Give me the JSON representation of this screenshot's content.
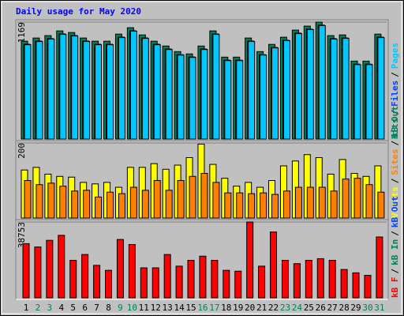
{
  "chart_data": [
    {
      "type": "bar",
      "title": "Daily usage for May 2020",
      "ylim": [
        0,
        1169
      ],
      "yticks": [
        1169
      ],
      "series": [
        {
          "name": "Hits",
          "color": "#00805c",
          "values": [
            978,
            1010,
            1034,
            1081,
            1065,
            1010,
            978,
            978,
            1049,
            1113,
            1041,
            978,
            930,
            874,
            851,
            930,
            1081,
            819,
            819,
            1010,
            874,
            946,
            1018,
            1089,
            1129,
            1169,
            1034,
            1041,
            779,
            779,
            1049
          ]
        },
        {
          "name": "Files",
          "color": "#0040ff",
          "values": [
            948,
            980,
            1004,
            1051,
            1035,
            980,
            948,
            948,
            1019,
            1083,
            1011,
            948,
            900,
            844,
            821,
            900,
            1051,
            789,
            789,
            980,
            844,
            916,
            988,
            1059,
            1099,
            1139,
            1004,
            1011,
            749,
            749,
            1019
          ]
        },
        {
          "name": "Pages",
          "color": "#00c8ff",
          "values": [
            943,
            975,
            999,
            1046,
            1030,
            975,
            943,
            943,
            1014,
            1078,
            1006,
            943,
            895,
            839,
            816,
            895,
            1046,
            784,
            784,
            975,
            839,
            911,
            983,
            1054,
            1094,
            1134,
            999,
            1006,
            744,
            744,
            1014
          ]
        }
      ]
    },
    {
      "type": "bar",
      "ylim": [
        0,
        200
      ],
      "yticks": [
        200
      ],
      "series": [
        {
          "name": "Visits",
          "color": "#ffff00",
          "values": [
            128,
            135,
            117,
            111,
            109,
            95,
            91,
            95,
            82,
            135,
            135,
            145,
            130,
            141,
            161,
            197,
            143,
            106,
            85,
            95,
            82,
            100,
            139,
            152,
            169,
            161,
            117,
            156,
            119,
            111,
            139
          ]
        },
        {
          "name": "Sites",
          "color": "#ff8000",
          "values": [
            100,
            89,
            93,
            85,
            72,
            74,
            56,
            69,
            65,
            82,
            74,
            100,
            74,
            100,
            111,
            119,
            95,
            67,
            67,
            65,
            67,
            63,
            72,
            82,
            82,
            82,
            72,
            104,
            106,
            89,
            69
          ]
        },
        {
          "name": "kB Out",
          "color": "#00805c",
          "values": [
            null,
            null,
            null,
            null,
            null,
            null,
            null,
            null,
            null,
            null,
            null,
            null,
            null,
            null,
            null,
            null,
            null,
            null,
            null,
            null,
            null,
            null,
            null,
            null,
            null,
            null,
            null,
            null,
            null,
            null,
            null
          ]
        }
      ]
    },
    {
      "type": "bar",
      "ylim": [
        0,
        38753
      ],
      "yticks": [
        38753
      ],
      "categories": [
        "1",
        "2",
        "3",
        "4",
        "5",
        "6",
        "7",
        "8",
        "9",
        "10",
        "11",
        "12",
        "13",
        "14",
        "15",
        "16",
        "17",
        "18",
        "19",
        "20",
        "21",
        "22",
        "23",
        "24",
        "25",
        "26",
        "27",
        "28",
        "29",
        "30",
        "31"
      ],
      "category_colors": [
        "#000000",
        "#00805c",
        "#00805c",
        "#000000",
        "#000000",
        "#000000",
        "#000000",
        "#000000",
        "#00805c",
        "#00805c",
        "#000000",
        "#000000",
        "#000000",
        "#000000",
        "#000000",
        "#00805c",
        "#00805c",
        "#000000",
        "#000000",
        "#000000",
        "#000000",
        "#000000",
        "#00805c",
        "#00805c",
        "#000000",
        "#000000",
        "#000000",
        "#000000",
        "#000000",
        "#00805c",
        "#00805c"
      ],
      "separator": "/",
      "series": [
        {
          "name": "kB F",
          "color": "#ff0000",
          "values": [
            27684,
            25980,
            29387,
            31943,
            19165,
            22146,
            16610,
            14054,
            29813,
            27257,
            15332,
            15332,
            22146,
            16184,
            19165,
            21295,
            19165,
            14054,
            13628,
            38753,
            16184,
            33646,
            19165,
            17462,
            19165,
            20017,
            19165,
            14480,
            12777,
            11499,
            31091
          ]
        },
        {
          "name": "kB In",
          "color": "#00805c",
          "values": [
            null,
            null,
            null,
            null,
            null,
            null,
            null,
            null,
            null,
            null,
            null,
            null,
            null,
            null,
            null,
            null,
            null,
            null,
            null,
            null,
            null,
            null,
            null,
            null,
            null,
            null,
            null,
            null,
            null,
            null,
            null
          ]
        },
        {
          "name": "kB Out",
          "color": "#0040ff",
          "values": [
            null,
            null,
            null,
            null,
            null,
            null,
            null,
            null,
            null,
            null,
            null,
            null,
            null,
            null,
            null,
            null,
            null,
            null,
            null,
            null,
            null,
            null,
            null,
            null,
            null,
            null,
            null,
            null,
            null,
            null,
            null
          ]
        }
      ]
    }
  ]
}
